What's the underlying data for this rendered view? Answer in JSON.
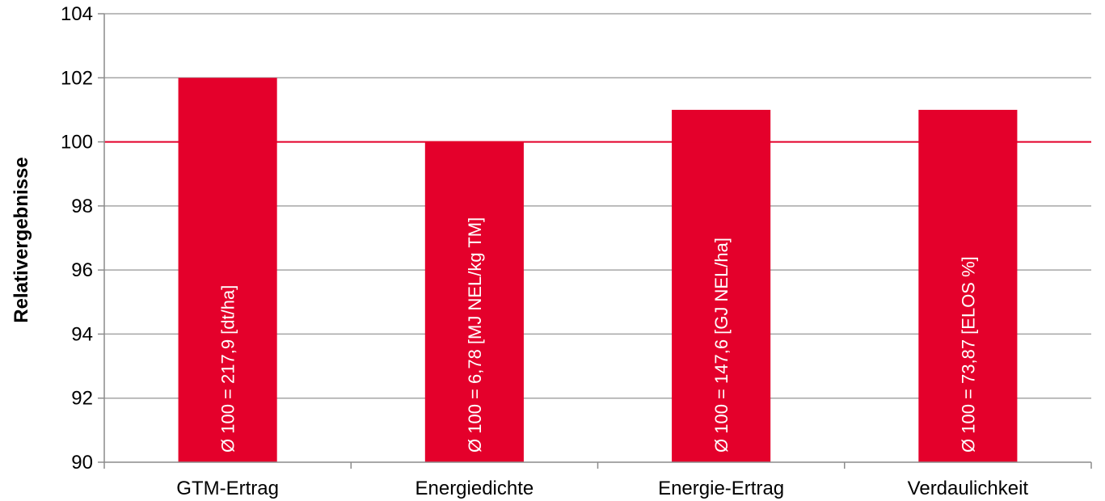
{
  "chart_data": {
    "type": "bar",
    "title": "",
    "xlabel": "",
    "ylabel": "Relativergebnisse",
    "ylim": [
      90,
      104
    ],
    "yticks": [
      90,
      92,
      94,
      96,
      98,
      100,
      102,
      104
    ],
    "categories": [
      "GTM-Ertrag",
      "Energiedichte",
      "Energie-Ertrag",
      "Verdaulichkeit"
    ],
    "values": [
      102,
      100,
      101,
      101
    ],
    "bar_labels": [
      "Ø 100 = 217,9 [dt/ha]",
      "Ø 100 = 6,78 [MJ NEL/kg TM]",
      "Ø 100 = 147,6 [GJ NEL/ha]",
      "Ø 100 = 73,87 [ELOS %]"
    ],
    "reference_line": 100,
    "grid": true,
    "legend": "none",
    "colors": {
      "bar": "#e4002b",
      "reference_line": "#e4002b",
      "grid": "#a6a6a6",
      "axis": "#8c8c8c",
      "text": "#000000",
      "bar_label_text": "#ffffff"
    }
  }
}
